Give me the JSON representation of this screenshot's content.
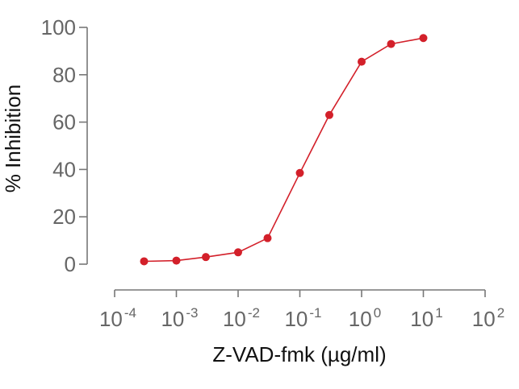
{
  "colors": {
    "series": "#d3202a",
    "axis": "#777777",
    "tick_text": "#666666",
    "title_text": "#111111"
  },
  "chart_data": {
    "type": "line",
    "x_scale": "log",
    "xlabel": "Z-VAD-fmk (µg/ml)",
    "ylabel": "% Inhibition",
    "xlim": [
      0.0001,
      100
    ],
    "ylim": [
      0,
      100
    ],
    "x_ticks": [
      {
        "value": 0.0001,
        "base": "10",
        "exp": "-4"
      },
      {
        "value": 0.001,
        "base": "10",
        "exp": "-3"
      },
      {
        "value": 0.01,
        "base": "10",
        "exp": "-2"
      },
      {
        "value": 0.1,
        "base": "10",
        "exp": "-1"
      },
      {
        "value": 1,
        "base": "10",
        "exp": "0"
      },
      {
        "value": 10,
        "base": "10",
        "exp": "1"
      },
      {
        "value": 100,
        "base": "10",
        "exp": "2"
      }
    ],
    "y_ticks": [
      "0",
      "20",
      "40",
      "60",
      "80",
      "100"
    ],
    "grid": false,
    "series": [
      {
        "color": "#d3202a",
        "x": [
          0.0003,
          0.001,
          0.003,
          0.01,
          0.03,
          0.1,
          0.3,
          1,
          3,
          10
        ],
        "y": [
          1.2,
          1.5,
          3.0,
          5.0,
          11.0,
          38.5,
          63.0,
          85.5,
          93.0,
          95.5
        ]
      }
    ]
  }
}
